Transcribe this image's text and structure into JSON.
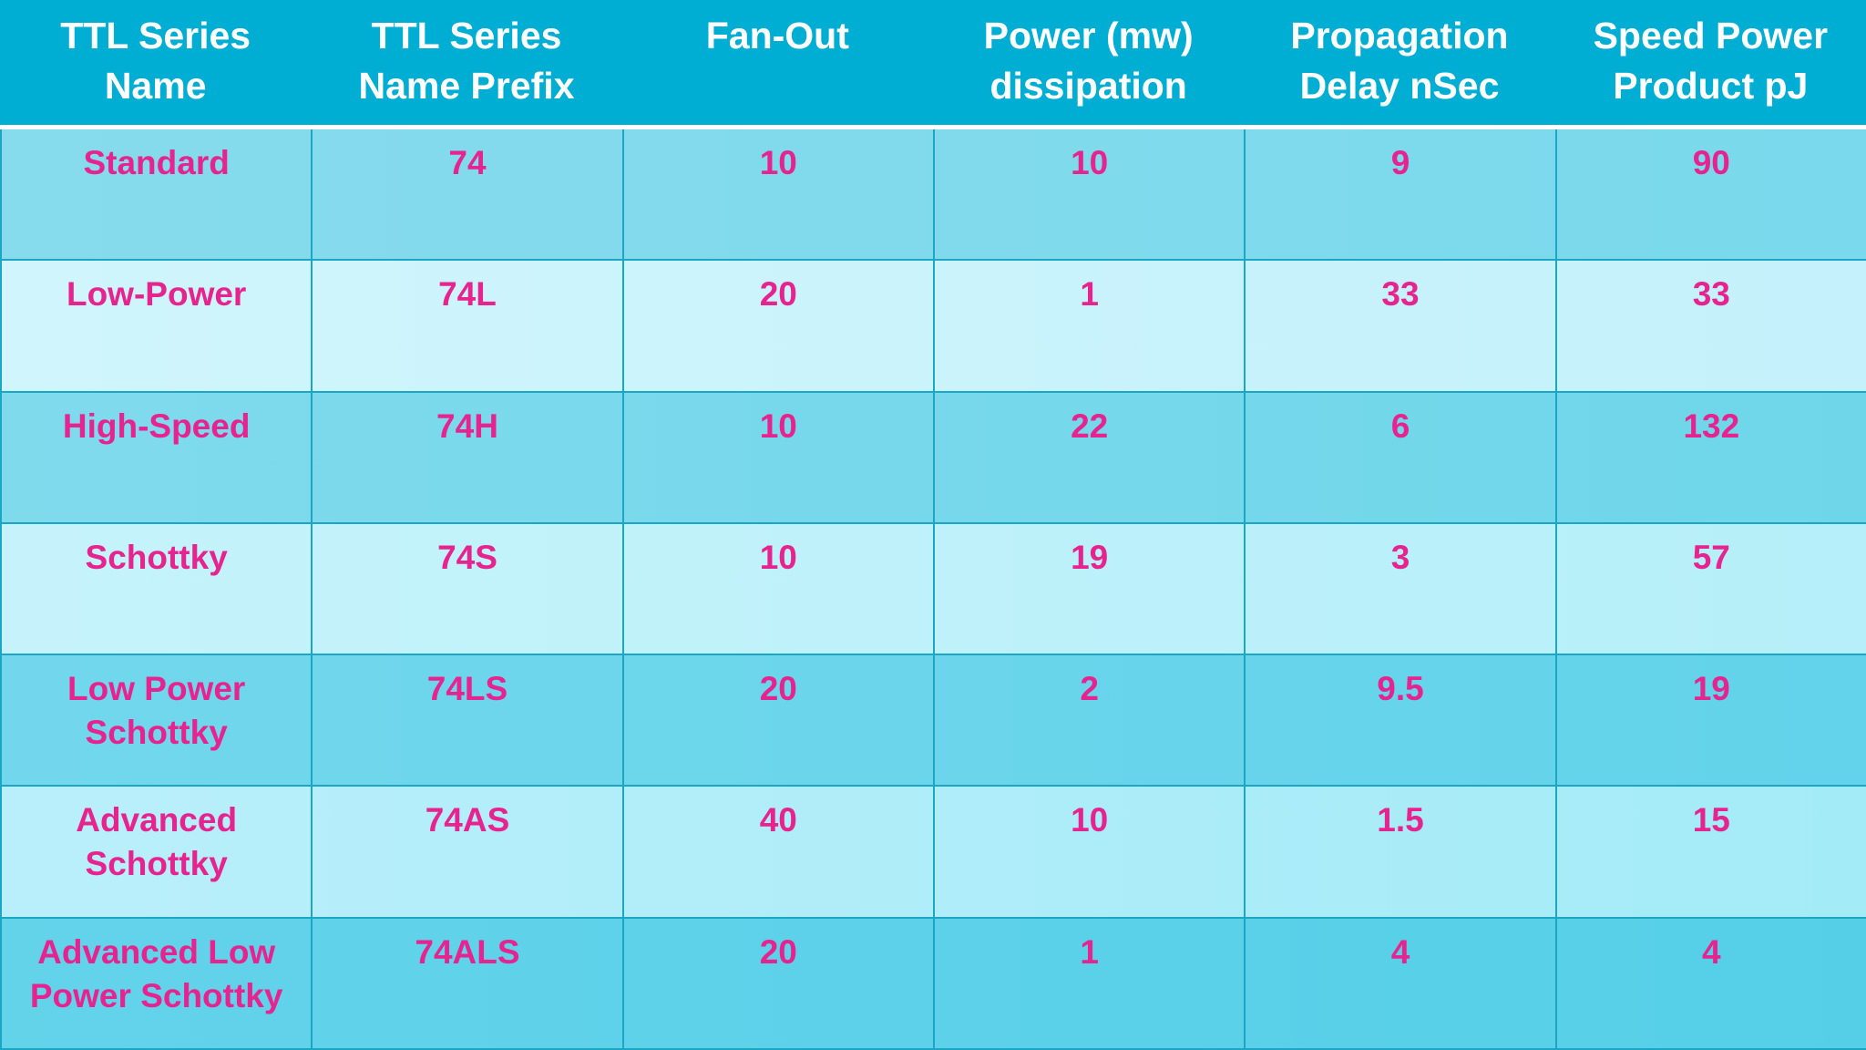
{
  "table": {
    "columns": [
      "TTL  Series\nName",
      "TTL Series\nName Prefix",
      "Fan-Out",
      "Power (mw)\ndissipation",
      "Propagation\nDelay nSec",
      "Speed Power\nProduct pJ"
    ],
    "rows": [
      [
        "Standard",
        "74",
        "10",
        "10",
        "9",
        "90"
      ],
      [
        "Low-Power",
        "74L",
        "20",
        "1",
        "33",
        "33"
      ],
      [
        "High-Speed",
        "74H",
        "10",
        "22",
        "6",
        "132"
      ],
      [
        "Schottky",
        "74S",
        "10",
        "19",
        "3",
        "57"
      ],
      [
        "Low Power\nSchottky",
        "74LS",
        "20",
        "2",
        "9.5",
        "19"
      ],
      [
        "Advanced\nSchottky",
        "74AS",
        "40",
        "10",
        "1.5",
        "15"
      ],
      [
        "Advanced Low\nPower Schottky",
        "74ALS",
        "20",
        "1",
        "4",
        "4"
      ]
    ]
  },
  "colors": {
    "header_bg": "#00aed4",
    "header_text": "#ffffff",
    "cell_text": "#e6238e",
    "grid": "#1aa6c4"
  }
}
